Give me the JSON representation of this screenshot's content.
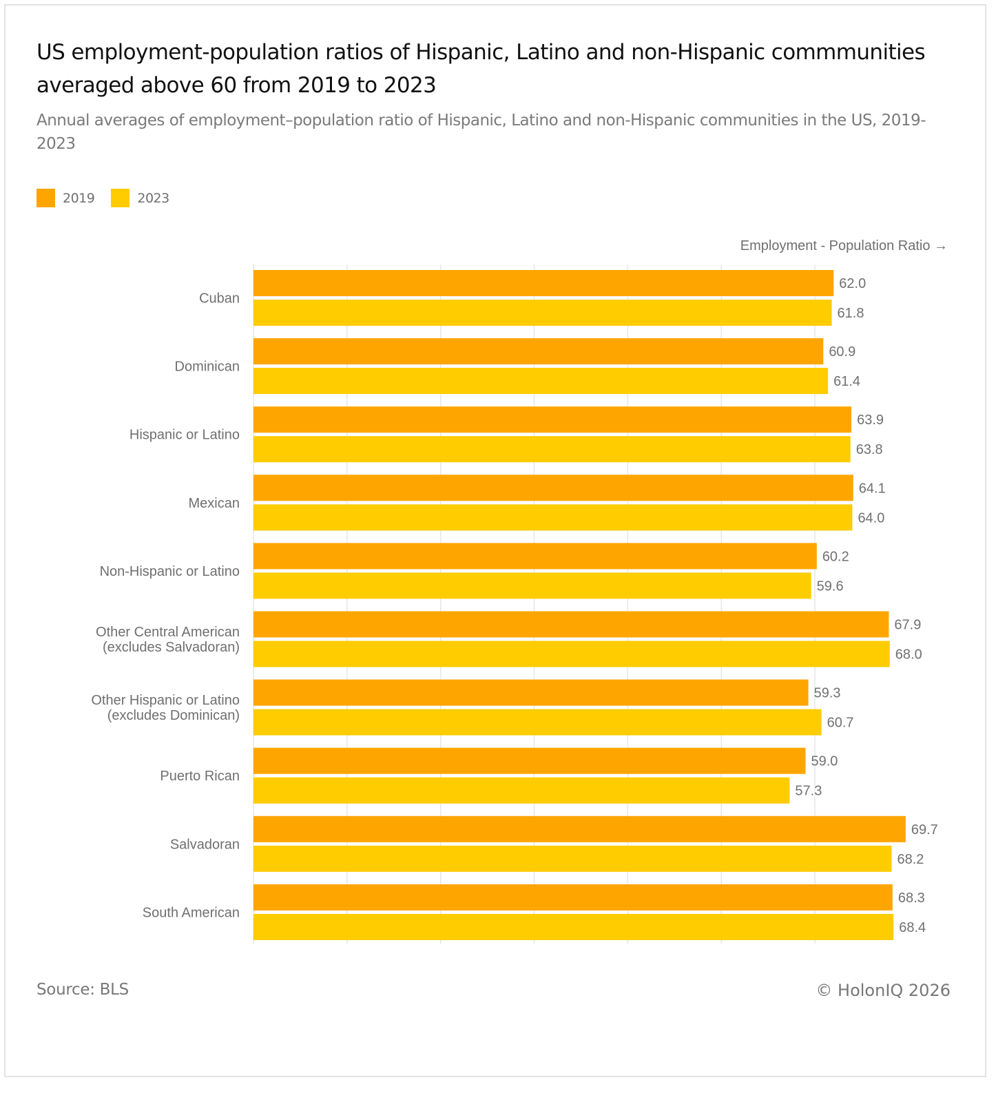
{
  "header": {
    "title": "US employment-population ratios of Hispanic, Latino and non-Hispanic commmunities averaged above 60 from 2019 to 2023",
    "subtitle": "Annual averages of employment–population ratio of Hispanic, Latino and non-Hispanic communities in the US, 2019-2023"
  },
  "legend": [
    {
      "label": "2019",
      "color": "#FFA500"
    },
    {
      "label": "2023",
      "color": "#FFCC00"
    }
  ],
  "footer": {
    "source": "Source: BLS",
    "credit": "© HolonIQ 2026"
  },
  "chart_data": {
    "type": "bar",
    "orientation": "horizontal",
    "title": "US employment-population ratios of Hispanic, Latino and non-Hispanic commmunities averaged above 60 from 2019 to 2023",
    "xlabel": "Employment - Population Ratio →",
    "ylabel": "",
    "xlim": [
      0,
      70
    ],
    "grid": true,
    "legend_position": "top-left",
    "categories": [
      [
        "Cuban"
      ],
      [
        "Dominican"
      ],
      [
        "Hispanic or Latino"
      ],
      [
        "Mexican"
      ],
      [
        "Non-Hispanic or Latino"
      ],
      [
        "Other Central American",
        "(excludes Salvadoran)"
      ],
      [
        "Other Hispanic or Latino",
        "(excludes Dominican)"
      ],
      [
        "Puerto Rican"
      ],
      [
        "Salvadoran"
      ],
      [
        "South American"
      ]
    ],
    "series": [
      {
        "name": "2019",
        "color": "#FFA500",
        "values": [
          62.0,
          60.9,
          63.9,
          64.1,
          60.2,
          67.9,
          59.3,
          59.0,
          69.7,
          68.3
        ]
      },
      {
        "name": "2023",
        "color": "#FFCC00",
        "values": [
          61.8,
          61.4,
          63.8,
          64.0,
          59.6,
          68.0,
          60.7,
          57.3,
          68.2,
          68.4
        ]
      }
    ],
    "gridlines": [
      0,
      10,
      20,
      30,
      40,
      50,
      60
    ]
  }
}
